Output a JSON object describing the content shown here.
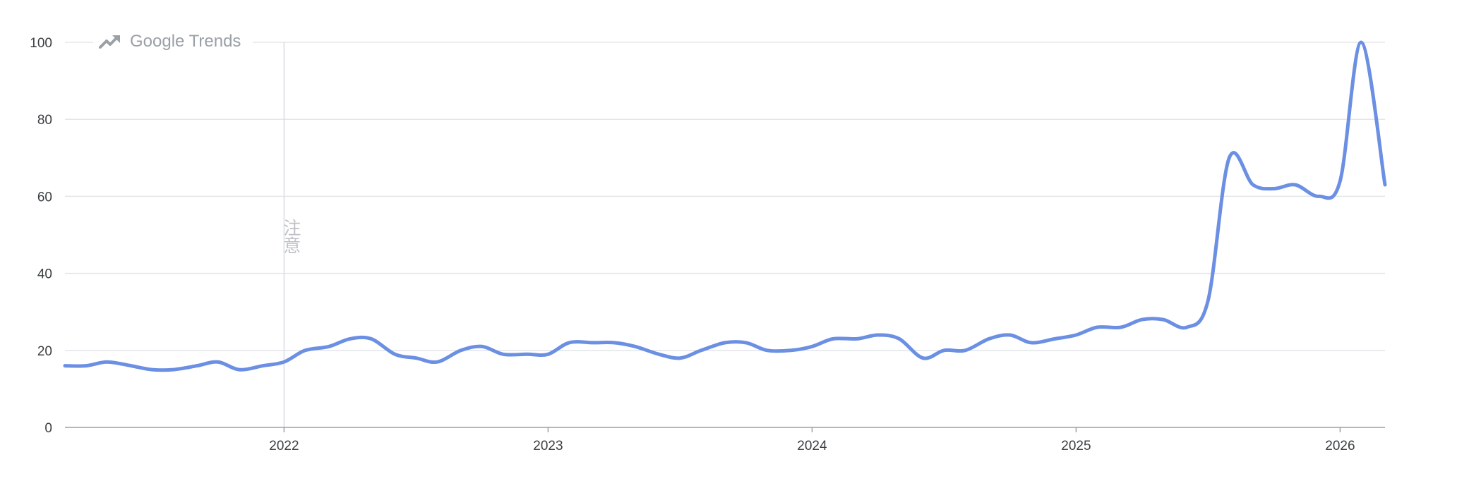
{
  "brand": {
    "label": "Google Trends",
    "icon": "trending-up-icon"
  },
  "annotation": {
    "label": "注意",
    "x": 2022.0
  },
  "colors": {
    "line": "#6b8fe3",
    "grid": "#e3e5e8",
    "axis": "#9aa0a6",
    "brand": "#9aa0a6",
    "annotation": "#dadce0"
  },
  "chart_data": {
    "type": "line",
    "title": "",
    "xlabel": "",
    "ylabel": "",
    "ylim": [
      0,
      100
    ],
    "xlim": [
      2021.17,
      2026.17
    ],
    "grid": true,
    "legend": "none",
    "x_ticks": [
      2022,
      2023,
      2024,
      2025,
      2026
    ],
    "x_tick_labels": [
      "2022",
      "2023",
      "2024",
      "2025",
      "2026"
    ],
    "y_ticks": [
      0,
      20,
      40,
      60,
      80,
      100
    ],
    "y_tick_labels": [
      "0",
      "20",
      "40",
      "60",
      "80",
      "100"
    ],
    "series": [
      {
        "x": [
          2021.17,
          2021.25,
          2021.33,
          2021.42,
          2021.5,
          2021.58,
          2021.67,
          2021.75,
          2021.83,
          2021.92,
          2022.0,
          2022.08,
          2022.17,
          2022.25,
          2022.33,
          2022.42,
          2022.5,
          2022.58,
          2022.67,
          2022.75,
          2022.83,
          2022.92,
          2023.0,
          2023.08,
          2023.17,
          2023.25,
          2023.33,
          2023.42,
          2023.5,
          2023.58,
          2023.67,
          2023.75,
          2023.83,
          2023.92,
          2024.0,
          2024.08,
          2024.17,
          2024.25,
          2024.33,
          2024.42,
          2024.5,
          2024.58,
          2024.67,
          2024.75,
          2024.83,
          2024.92,
          2025.0,
          2025.08,
          2025.17,
          2025.25,
          2025.33,
          2025.42,
          2025.5,
          2025.58,
          2025.67,
          2025.75,
          2025.83,
          2025.92,
          2026.0,
          2026.08,
          2026.17
        ],
        "values": [
          16,
          16,
          17,
          16,
          15,
          15,
          16,
          17,
          15,
          16,
          17,
          20,
          21,
          23,
          23,
          19,
          18,
          17,
          20,
          21,
          19,
          19,
          19,
          22,
          22,
          22,
          21,
          19,
          18,
          20,
          22,
          22,
          20,
          20,
          21,
          23,
          23,
          24,
          23,
          18,
          20,
          20,
          23,
          24,
          22,
          23,
          24,
          26,
          26,
          28,
          28,
          26,
          33,
          70,
          63,
          62,
          63,
          60,
          64,
          100,
          63
        ]
      }
    ]
  }
}
